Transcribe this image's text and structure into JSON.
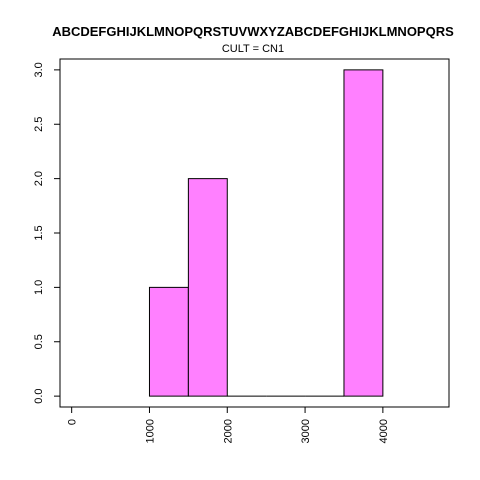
{
  "chart_data": {
    "type": "bar",
    "title": "ABCDEFGHIJKLMNOPQRSTUVWXYZABCDEFGHIJKLMNOPQRS",
    "subtitle": "CULT = CN1",
    "xlabel": "",
    "ylabel": "",
    "xlim": [
      -150,
      4850
    ],
    "ylim": [
      -0.1,
      3.1
    ],
    "xticks": [
      0,
      1000,
      2000,
      3000,
      4000
    ],
    "yticks": [
      0.0,
      0.5,
      1.0,
      1.5,
      2.0,
      2.5,
      3.0
    ],
    "ytick_labels": [
      "0.0",
      "0.5",
      "1.0",
      "1.5",
      "2.0",
      "2.5",
      "3.0"
    ],
    "bins": [
      {
        "x0": 1000,
        "x1": 1500,
        "count": 1
      },
      {
        "x0": 1500,
        "x1": 2000,
        "count": 2
      },
      {
        "x0": 2000,
        "x1": 2500,
        "count": 0
      },
      {
        "x0": 2500,
        "x1": 3000,
        "count": 0
      },
      {
        "x0": 3000,
        "x1": 3500,
        "count": 0
      },
      {
        "x0": 3500,
        "x1": 4000,
        "count": 3
      }
    ],
    "bar_color": "#ff80ff",
    "grid": false
  }
}
